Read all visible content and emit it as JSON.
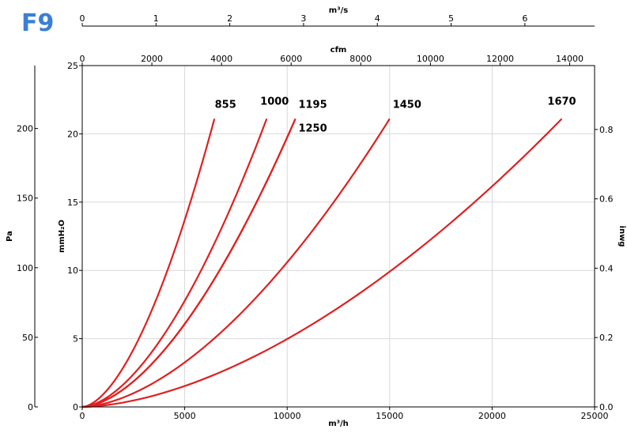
{
  "brand": {
    "label": "F9",
    "color": "#3a7fd5"
  },
  "chart_data": {
    "type": "line",
    "xlabel": "m³/h",
    "ylabel": "mmH₂O",
    "xlim": [
      0,
      25000
    ],
    "ylim": [
      0,
      25
    ],
    "grid": true,
    "line_color": "#e02020",
    "x_ticks": [
      0,
      5000,
      10000,
      15000,
      20000,
      25000
    ],
    "y_ticks": [
      0,
      5,
      10,
      15,
      20,
      25
    ],
    "secondary_axes": {
      "top_m3s": {
        "label": "m³/s",
        "ticks": [
          0,
          1,
          2,
          3,
          4,
          5,
          6
        ],
        "factor": 3600
      },
      "top_cfm": {
        "label": "cfm",
        "ticks": [
          0,
          2000,
          4000,
          6000,
          8000,
          10000,
          12000,
          14000
        ],
        "factor": 1.699
      },
      "left_pa": {
        "label": "Pa",
        "ticks": [
          0,
          50,
          100,
          150,
          200
        ],
        "factor": 0.10197
      },
      "right_inwg": {
        "label": "inwg",
        "ticks": [
          "0.0",
          "0.2",
          "0.4",
          "0.6",
          "0.8"
        ],
        "factor": 25.4
      }
    },
    "series": [
      {
        "name": "855",
        "x_max": 6450,
        "y_max": 21.1
      },
      {
        "name": "1000",
        "x_max": 9000,
        "y_max": 21.1
      },
      {
        "name": "1195",
        "x_max": 10400,
        "y_max": 21.1
      },
      {
        "name": "1250",
        "x_max": 10400,
        "y_max": 21.1
      },
      {
        "name": "1450",
        "x_max": 15000,
        "y_max": 21.1
      },
      {
        "name": "1670",
        "x_max": 23400,
        "y_max": 21.1
      }
    ]
  }
}
